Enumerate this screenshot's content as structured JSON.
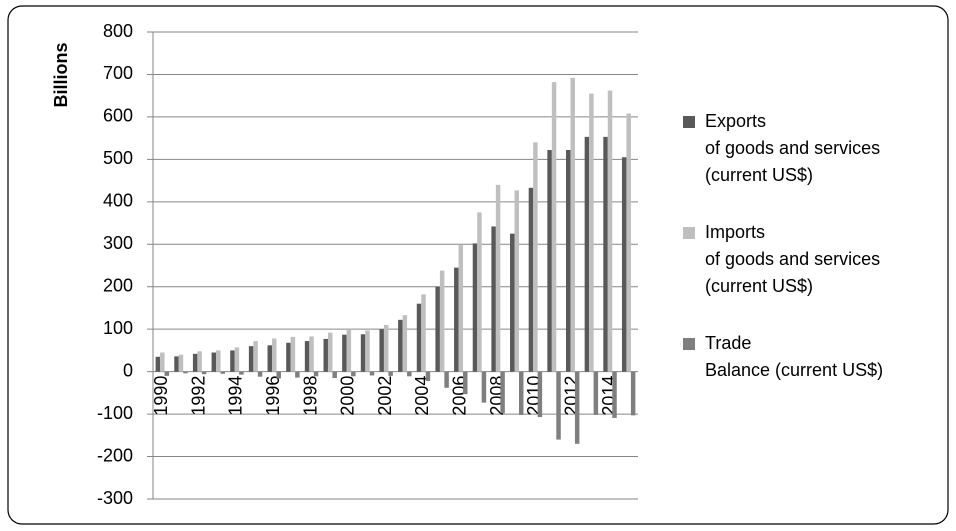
{
  "chart_data": {
    "type": "bar",
    "y_label": "Billions",
    "categories": [
      "1990",
      null,
      "1992",
      null,
      "1994",
      null,
      "1996",
      null,
      "1998",
      null,
      "2000",
      null,
      "2002",
      null,
      "2004",
      null,
      "2006",
      null,
      "2008",
      null,
      "2010",
      null,
      "2012",
      null,
      "2014",
      null
    ],
    "series": [
      {
        "name": "Exports\nof goods and services\n(current US$)",
        "color": "#595959",
        "values": [
          35,
          36,
          42,
          45,
          50,
          60,
          62,
          68,
          72,
          77,
          87,
          88,
          100,
          122,
          160,
          200,
          245,
          302,
          342,
          325,
          433,
          522,
          522,
          553,
          553,
          505
        ]
      },
      {
        "name": "Imports\nof goods and services\n(current US$)",
        "color": "#bfbfbf",
        "values": [
          45,
          40,
          48,
          50,
          57,
          72,
          78,
          82,
          83,
          92,
          98,
          97,
          110,
          133,
          182,
          238,
          298,
          375,
          440,
          427,
          540,
          682,
          692,
          655,
          662,
          608
        ]
      },
      {
        "name": "Trade\nBalance (current US$)",
        "color": "#7f7f7f",
        "values": [
          -10,
          -4,
          -6,
          -5,
          -7,
          -12,
          -16,
          -14,
          -11,
          -15,
          -11,
          -9,
          -10,
          -11,
          -22,
          -38,
          -53,
          -73,
          -98,
          -102,
          -107,
          -160,
          -170,
          -102,
          -109,
          -103
        ]
      }
    ],
    "ylim": [
      -300,
      800
    ],
    "yticks": [
      -300,
      -200,
      -100,
      0,
      100,
      200,
      300,
      400,
      500,
      600,
      700,
      800
    ],
    "grid": true
  }
}
